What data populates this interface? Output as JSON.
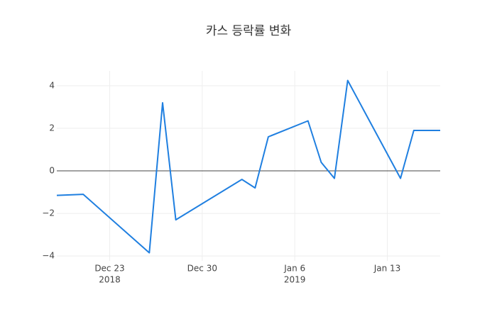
{
  "chart_data": {
    "type": "line",
    "title": "카스 등락률 변화",
    "x": [
      "2018-12-19",
      "2018-12-21",
      "2018-12-26",
      "2018-12-27",
      "2018-12-28",
      "2019-01-02",
      "2019-01-03",
      "2019-01-04",
      "2019-01-07",
      "2019-01-08",
      "2019-01-09",
      "2019-01-10",
      "2019-01-14",
      "2019-01-15",
      "2019-01-17"
    ],
    "values": [
      -1.15,
      -1.1,
      -3.85,
      3.2,
      -2.3,
      -0.4,
      -0.8,
      1.6,
      2.35,
      0.4,
      -0.35,
      4.25,
      -0.35,
      1.9,
      1.9
    ],
    "color": "#1f7fe0",
    "xlim": [
      "2018-12-19",
      "2019-01-17"
    ],
    "xticks": [
      {
        "value": "2018-12-23",
        "label": "Dec 23",
        "year": "2018"
      },
      {
        "value": "2018-12-30",
        "label": "Dec 30"
      },
      {
        "value": "2019-01-06",
        "label": "Jan 6",
        "year": "2019"
      },
      {
        "value": "2019-01-13",
        "label": "Jan 13"
      }
    ],
    "ylim": [
      -4.23,
      4.7
    ],
    "yticks": [
      {
        "value": -4,
        "label": "−4"
      },
      {
        "value": -2,
        "label": "−2"
      },
      0,
      2,
      4
    ],
    "grid": true
  }
}
